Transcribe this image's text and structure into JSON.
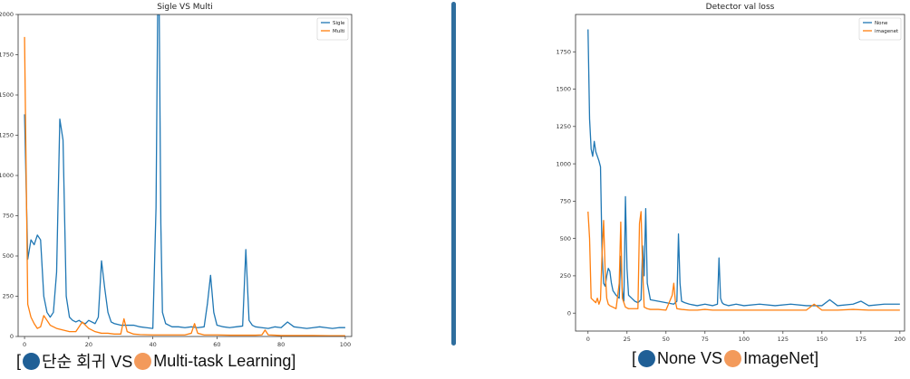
{
  "colors": {
    "series_blue": "#1f77b4",
    "series_orange": "#ff7f0e",
    "divider": "#2f6e9e",
    "dot_blue": "#1f5f96",
    "dot_orange": "#f39a5b"
  },
  "captions": {
    "left": {
      "open": "[",
      "text1": "단순 회귀 VS ",
      "text2": "Multi-task Learning",
      "close": "]"
    },
    "right": {
      "open": "[",
      "text1": "None VS ",
      "text2": "ImageNet",
      "close": "]"
    }
  },
  "chart_data": [
    {
      "type": "line",
      "title": "Sigle VS Multi",
      "xlabel": "",
      "ylabel": "",
      "xlim": [
        -2,
        102
      ],
      "ylim": [
        0,
        2000
      ],
      "xticks": [
        0,
        20,
        40,
        60,
        80,
        100
      ],
      "yticks": [
        0,
        250,
        500,
        750,
        1000,
        1250,
        1500,
        1750,
        2000
      ],
      "legend_position": "top-right",
      "grid": false,
      "series": [
        {
          "name": "Sigle",
          "color": "#1f77b4",
          "x": [
            0,
            1,
            2,
            3,
            4,
            5,
            6,
            7,
            8,
            9,
            10,
            11,
            12,
            13,
            14,
            15,
            16,
            17,
            18,
            19,
            20,
            22,
            23,
            24,
            25,
            26,
            27,
            28,
            30,
            32,
            34,
            36,
            38,
            40,
            41,
            41.5,
            42,
            42.5,
            43,
            44,
            46,
            48,
            50,
            52,
            54,
            56,
            57,
            58,
            59,
            60,
            62,
            64,
            66,
            68,
            69,
            70,
            71,
            72,
            74,
            76,
            78,
            80,
            82,
            84,
            86,
            88,
            90,
            92,
            94,
            96,
            98,
            100
          ],
          "y": [
            1380,
            480,
            600,
            570,
            630,
            600,
            250,
            150,
            120,
            150,
            400,
            1350,
            1220,
            250,
            120,
            100,
            90,
            100,
            85,
            80,
            100,
            80,
            120,
            470,
            300,
            150,
            90,
            80,
            70,
            70,
            70,
            60,
            55,
            50,
            800,
            2000,
            2000,
            700,
            150,
            80,
            60,
            60,
            55,
            60,
            55,
            60,
            200,
            380,
            150,
            70,
            60,
            55,
            60,
            65,
            540,
            100,
            70,
            60,
            55,
            50,
            60,
            55,
            90,
            60,
            55,
            50,
            55,
            60,
            55,
            50,
            55,
            55
          ]
        },
        {
          "name": "Multi",
          "color": "#ff7f0e",
          "x": [
            0,
            1,
            2,
            3,
            4,
            5,
            6,
            7,
            8,
            10,
            12,
            14,
            16,
            18,
            19,
            20,
            22,
            24,
            26,
            28,
            30,
            31,
            32,
            34,
            36,
            40,
            44,
            50,
            52,
            53,
            54,
            56,
            60,
            64,
            68,
            72,
            74,
            75,
            76,
            78,
            80,
            84,
            90,
            95,
            100
          ],
          "y": [
            1860,
            200,
            120,
            80,
            50,
            60,
            130,
            100,
            70,
            50,
            40,
            30,
            30,
            90,
            70,
            50,
            30,
            20,
            20,
            15,
            15,
            110,
            30,
            15,
            12,
            10,
            10,
            10,
            20,
            80,
            20,
            10,
            10,
            8,
            8,
            8,
            10,
            40,
            10,
            8,
            6,
            6,
            6,
            5,
            5
          ]
        }
      ]
    },
    {
      "type": "line",
      "title": "Detector val loss",
      "xlabel": "",
      "ylabel": "",
      "xlim": [
        -8,
        203
      ],
      "ylim": [
        -120,
        2000
      ],
      "xticks": [
        0,
        25,
        50,
        75,
        100,
        125,
        150,
        175,
        200
      ],
      "yticks": [
        0,
        250,
        500,
        750,
        1000,
        1250,
        1500,
        1750
      ],
      "legend_position": "top-right",
      "grid": false,
      "series": [
        {
          "name": "None",
          "color": "#1f77b4",
          "x": [
            0,
            1,
            2,
            3,
            4,
            5,
            6,
            7,
            8,
            9,
            10,
            11,
            12,
            13,
            14,
            15,
            16,
            18,
            20,
            21,
            22,
            23,
            24,
            25,
            26,
            28,
            30,
            32,
            34,
            35,
            36,
            37,
            38,
            40,
            45,
            50,
            55,
            57,
            58,
            59,
            60,
            62,
            65,
            70,
            75,
            80,
            83,
            84,
            85,
            86,
            87,
            90,
            95,
            100,
            110,
            120,
            130,
            140,
            150,
            155,
            160,
            170,
            175,
            180,
            190,
            200
          ],
          "y": [
            1900,
            1300,
            1100,
            1050,
            1150,
            1080,
            1050,
            1020,
            980,
            400,
            200,
            180,
            250,
            300,
            280,
            200,
            150,
            120,
            100,
            380,
            150,
            80,
            780,
            300,
            120,
            100,
            80,
            70,
            90,
            450,
            250,
            700,
            200,
            90,
            80,
            70,
            60,
            80,
            530,
            200,
            80,
            70,
            60,
            50,
            60,
            50,
            60,
            370,
            100,
            70,
            60,
            50,
            60,
            50,
            60,
            50,
            60,
            50,
            50,
            90,
            50,
            60,
            80,
            50,
            60,
            60
          ]
        },
        {
          "name": "imagenet",
          "color": "#ff7f0e",
          "x": [
            0,
            1,
            2,
            3,
            4,
            5,
            6,
            7,
            8,
            9,
            10,
            11,
            12,
            13,
            14,
            16,
            18,
            20,
            21,
            22,
            24,
            26,
            28,
            30,
            32,
            33,
            34,
            35,
            36,
            38,
            40,
            45,
            50,
            54,
            55,
            56,
            57,
            60,
            65,
            70,
            75,
            80,
            85,
            90,
            100,
            110,
            120,
            130,
            140,
            145,
            150,
            160,
            170,
            180,
            190,
            200
          ],
          "y": [
            680,
            500,
            100,
            90,
            80,
            70,
            100,
            60,
            90,
            400,
            620,
            280,
            100,
            60,
            50,
            40,
            30,
            200,
            610,
            100,
            40,
            30,
            30,
            30,
            30,
            600,
            680,
            300,
            40,
            30,
            25,
            25,
            20,
            120,
            200,
            80,
            30,
            25,
            20,
            20,
            25,
            20,
            20,
            20,
            20,
            20,
            20,
            20,
            20,
            60,
            20,
            20,
            25,
            20,
            20,
            20
          ]
        }
      ]
    }
  ]
}
